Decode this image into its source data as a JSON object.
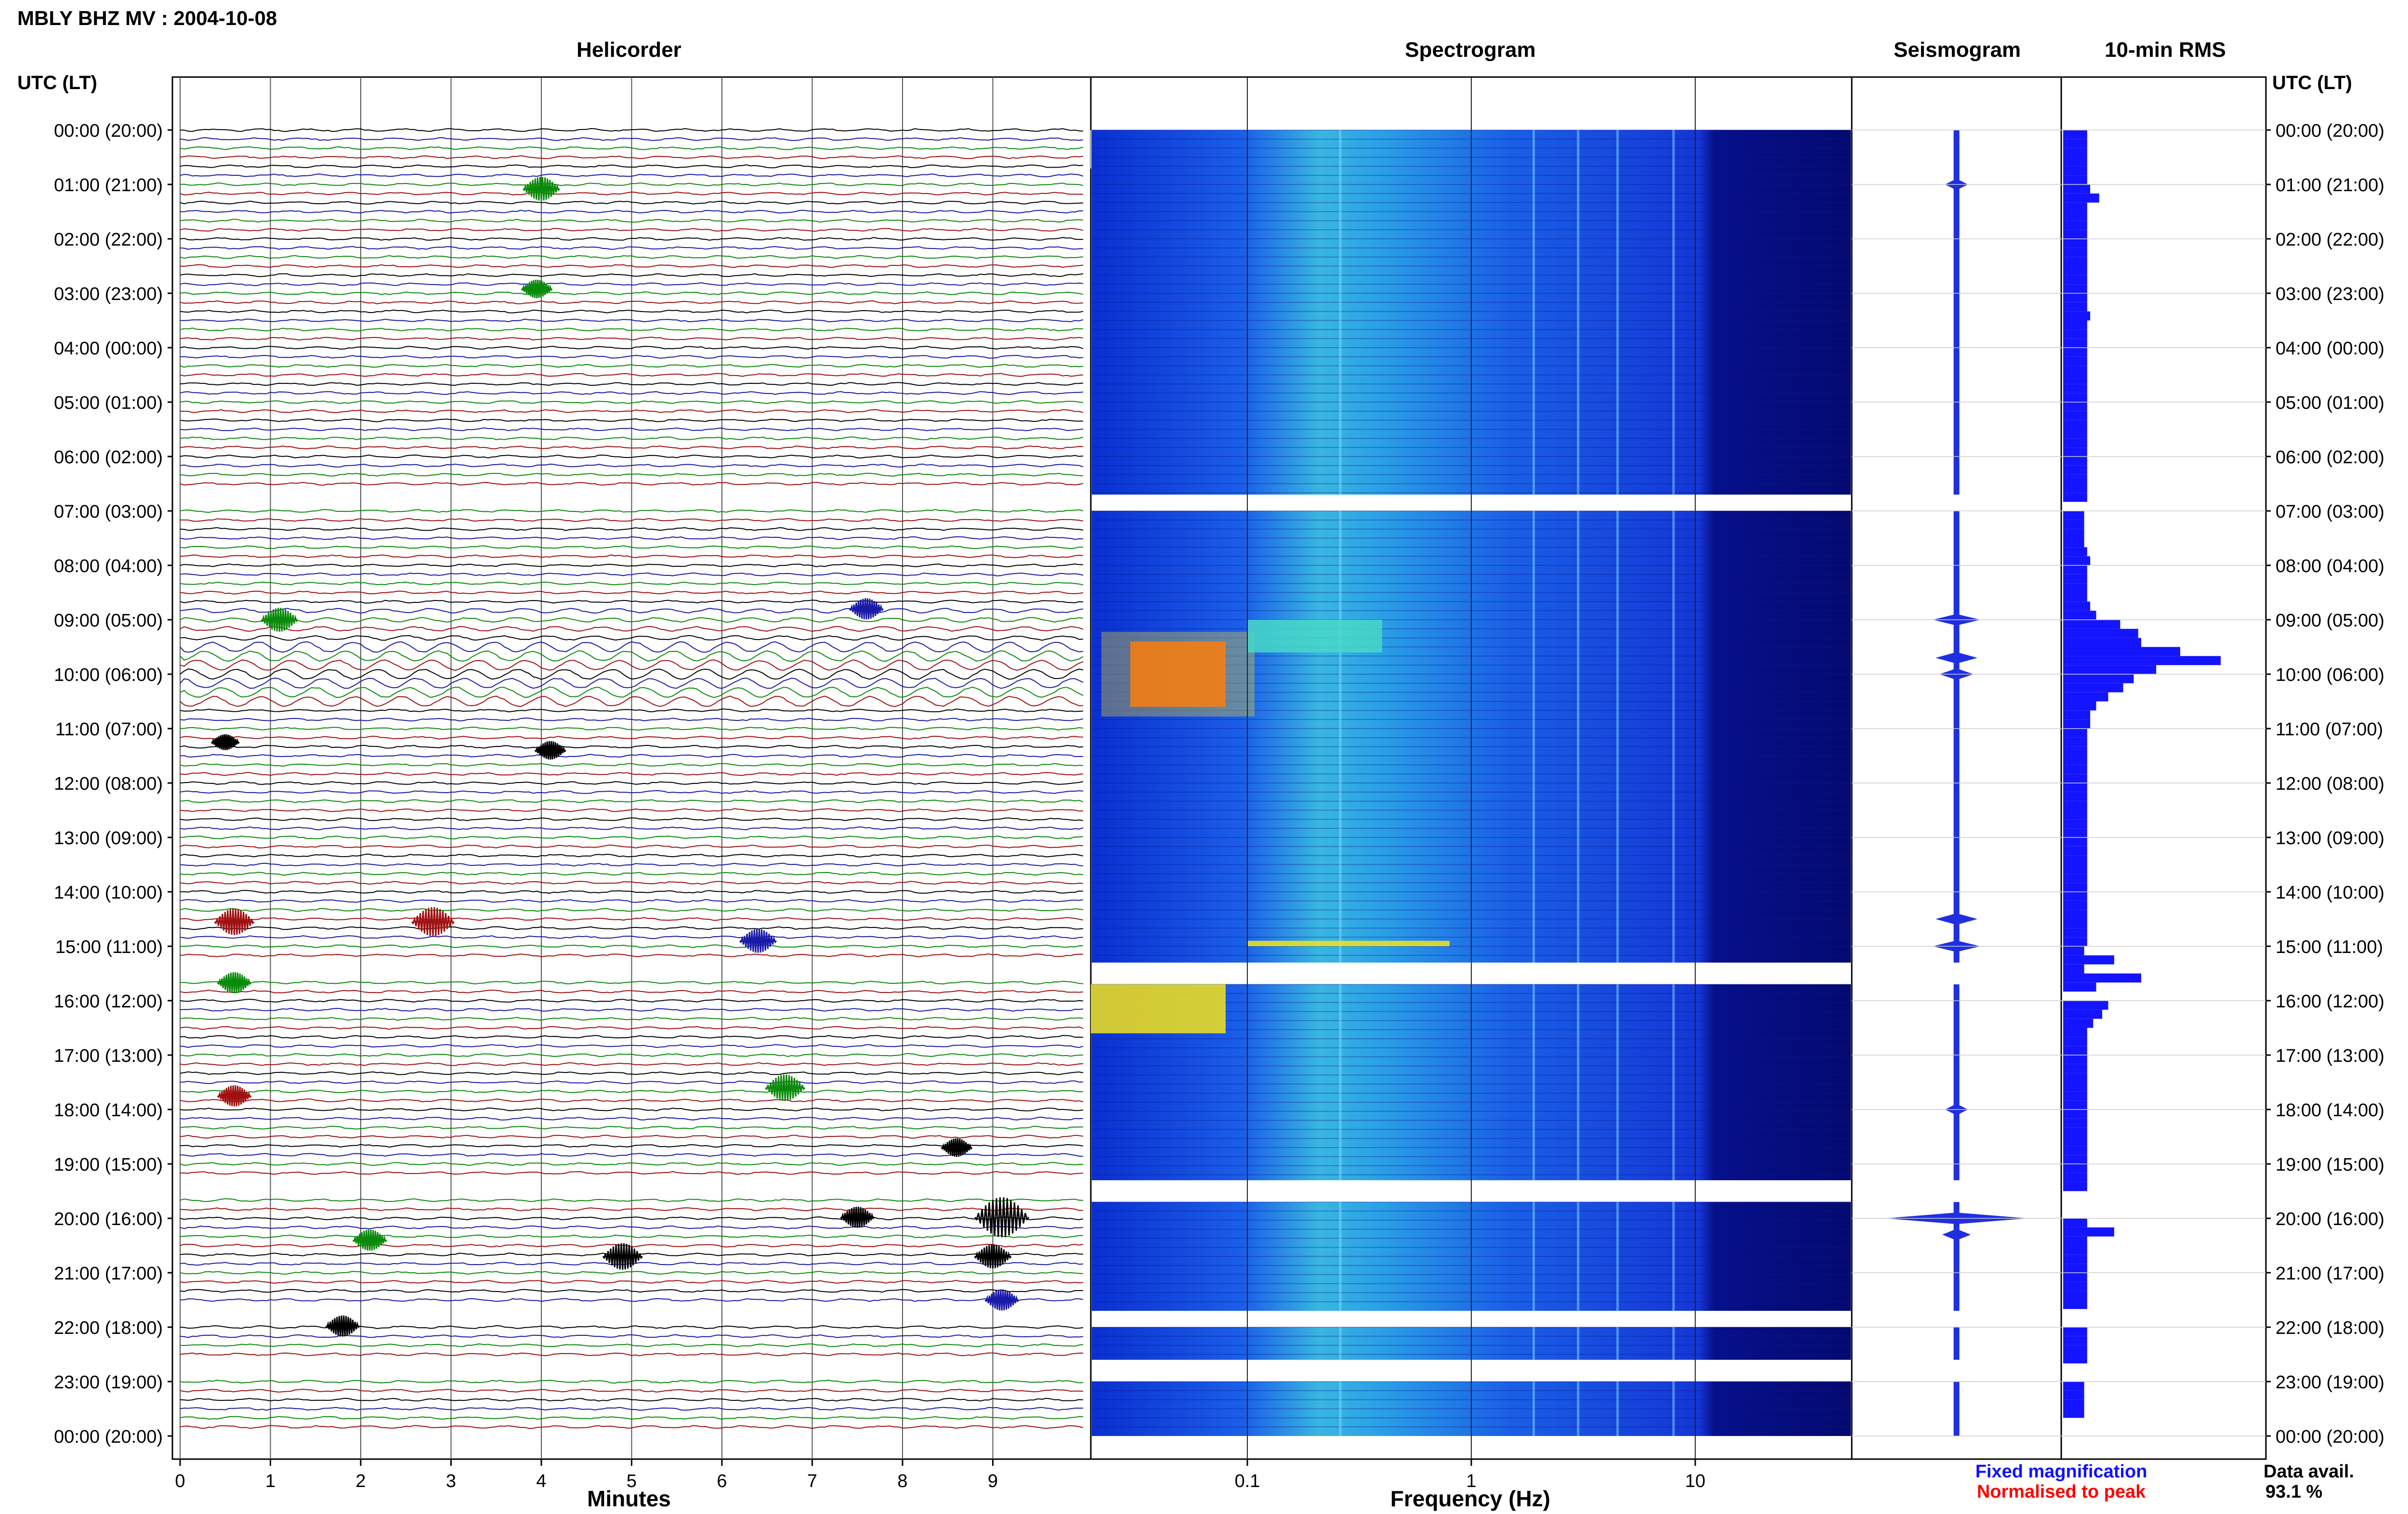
{
  "header": {
    "station_title": "MBLY BHZ MV : 2004-10-08",
    "helicorder_title": "Helicorder",
    "spectrogram_title": "Spectrogram",
    "seismogram_title": "Seismogram",
    "rms_title": "10-min RMS",
    "utc_label_left": "UTC (LT)",
    "utc_label_right": "UTC (LT)"
  },
  "footer": {
    "minutes_label": "Minutes",
    "frequency_label": "Frequency (Hz)",
    "fixed_magnification": "Fixed magnification",
    "normalised_to_peak": "Normalised to peak",
    "data_avail_label": "Data avail.",
    "data_avail_value": "93.1 %"
  },
  "colors": {
    "trace_cycle": [
      "#000000",
      "#1a1aa8",
      "#0a8a0a",
      "#a01010"
    ],
    "seismogram": "#1f2fe0",
    "rms_bar": "#1414ff",
    "fixed_magnification": "#1010ff",
    "normalised_to_peak": "#ff0000",
    "spectrogram_low": "#00008b",
    "spectrogram_high": "#ff4000"
  },
  "chart_data": {
    "type": "heatmap",
    "time_ticks": [
      "00:00 (20:00)",
      "01:00 (21:00)",
      "02:00 (22:00)",
      "03:00 (23:00)",
      "04:00 (00:00)",
      "05:00 (01:00)",
      "06:00 (02:00)",
      "07:00 (03:00)",
      "08:00 (04:00)",
      "09:00 (05:00)",
      "10:00 (06:00)",
      "11:00 (07:00)",
      "12:00 (08:00)",
      "13:00 (09:00)",
      "14:00 (10:00)",
      "15:00 (11:00)",
      "16:00 (12:00)",
      "17:00 (13:00)",
      "18:00 (14:00)",
      "19:00 (15:00)",
      "20:00 (16:00)",
      "21:00 (17:00)",
      "22:00 (18:00)",
      "23:00 (19:00)",
      "00:00 (20:00)"
    ],
    "helicorder": {
      "xlabel": "Minutes",
      "minutes_ticks": [
        "0",
        "1",
        "2",
        "3",
        "4",
        "5",
        "6",
        "7",
        "8",
        "9"
      ],
      "xlim": [
        0,
        10
      ],
      "rows_per_hour": 6,
      "events": [
        {
          "hour": 1.08,
          "minute": 4.0,
          "amp": 0.6
        },
        {
          "hour": 2.92,
          "minute": 3.95,
          "amp": 0.4
        },
        {
          "hour": 8.8,
          "minute": 7.6,
          "amp": 0.5
        },
        {
          "hour": 9.0,
          "minute": 1.1,
          "amp": 0.6
        },
        {
          "hour": 11.25,
          "minute": 0.5,
          "amp": 0.3
        },
        {
          "hour": 11.4,
          "minute": 4.1,
          "amp": 0.4
        },
        {
          "hour": 14.55,
          "minute": 0.6,
          "amp": 0.7
        },
        {
          "hour": 14.55,
          "minute": 2.8,
          "amp": 0.8
        },
        {
          "hour": 14.9,
          "minute": 6.4,
          "amp": 0.6
        },
        {
          "hour": 15.67,
          "minute": 0.6,
          "amp": 0.5
        },
        {
          "hour": 17.6,
          "minute": 6.7,
          "amp": 0.7
        },
        {
          "hour": 17.75,
          "minute": 0.6,
          "amp": 0.5
        },
        {
          "hour": 18.7,
          "minute": 8.6,
          "amp": 0.4
        },
        {
          "hour": 19.98,
          "minute": 7.5,
          "amp": 0.5
        },
        {
          "hour": 19.98,
          "minute": 9.1,
          "amp": 1.2
        },
        {
          "hour": 20.4,
          "minute": 2.1,
          "amp": 0.5
        },
        {
          "hour": 20.7,
          "minute": 4.9,
          "amp": 0.7
        },
        {
          "hour": 20.7,
          "minute": 9.0,
          "amp": 0.6
        },
        {
          "hour": 21.5,
          "minute": 9.1,
          "amp": 0.5
        },
        {
          "hour": 21.98,
          "minute": 1.8,
          "amp": 0.5
        }
      ]
    },
    "spectrogram": {
      "xlabel": "Frequency (Hz)",
      "x_scale": "log",
      "xlim": [
        0.02,
        50
      ],
      "tick_labels": [
        "0.1",
        "1",
        "10"
      ],
      "gaps_utc_hours": [
        [
          6.7,
          7.0
        ],
        [
          15.3,
          15.7
        ],
        [
          19.3,
          19.7
        ],
        [
          21.7,
          22.0
        ],
        [
          22.6,
          23.0
        ]
      ],
      "hot_spots": [
        {
          "hour_start": 9.4,
          "hour_end": 10.6,
          "freq_min": 0.03,
          "freq_max": 0.08,
          "level": 1.0
        },
        {
          "hour_start": 15.7,
          "hour_end": 16.6,
          "freq_min": 0.02,
          "freq_max": 0.08,
          "level": 0.75
        },
        {
          "hour_start": 9.0,
          "hour_end": 9.6,
          "freq_min": 0.1,
          "freq_max": 0.4,
          "level": 0.6
        },
        {
          "hour_start": 14.9,
          "hour_end": 15.0,
          "freq_min": 0.1,
          "freq_max": 0.8,
          "level": 0.7
        }
      ]
    },
    "seismogram": {
      "xlim": [
        -1,
        1
      ],
      "amplitudes_utc_hour": [
        {
          "hour": 1.0,
          "amp": 0.12
        },
        {
          "hour": 9.0,
          "amp": 0.25
        },
        {
          "hour": 9.7,
          "amp": 0.22
        },
        {
          "hour": 10.0,
          "amp": 0.18
        },
        {
          "hour": 14.5,
          "amp": 0.22
        },
        {
          "hour": 15.0,
          "amp": 0.25
        },
        {
          "hour": 18.0,
          "amp": 0.12
        },
        {
          "hour": 20.0,
          "amp": 0.75
        },
        {
          "hour": 20.3,
          "amp": 0.15
        }
      ]
    },
    "rms_10min": {
      "values": [
        0.16,
        0.16,
        0.16,
        0.16,
        0.16,
        0.16,
        0.18,
        0.24,
        0.16,
        0.16,
        0.16,
        0.16,
        0.16,
        0.16,
        0.16,
        0.16,
        0.16,
        0.16,
        0.16,
        0.16,
        0.18,
        0.16,
        0.16,
        0.16,
        0.16,
        0.16,
        0.16,
        0.16,
        0.16,
        0.16,
        0.16,
        0.16,
        0.16,
        0.16,
        0.16,
        0.16,
        0.16,
        0.16,
        0.16,
        0.16,
        0.16,
        null,
        0.14,
        0.14,
        0.14,
        0.14,
        0.16,
        0.18,
        0.16,
        0.16,
        0.16,
        0.16,
        0.18,
        0.22,
        0.38,
        0.5,
        0.52,
        0.78,
        1.05,
        0.62,
        0.47,
        0.4,
        0.3,
        0.22,
        0.18,
        0.18,
        0.16,
        0.16,
        0.16,
        0.16,
        0.16,
        0.16,
        0.16,
        0.16,
        0.16,
        0.16,
        0.16,
        0.16,
        0.16,
        0.16,
        0.16,
        0.16,
        0.16,
        0.16,
        0.16,
        0.16,
        0.16,
        0.16,
        0.16,
        0.16,
        0.14,
        0.34,
        0.14,
        0.52,
        0.22,
        null,
        0.3,
        0.26,
        0.2,
        0.16,
        0.16,
        0.16,
        0.16,
        0.16,
        0.16,
        0.16,
        0.16,
        0.16,
        0.16,
        0.16,
        0.16,
        0.16,
        0.16,
        0.16,
        0.16,
        0.16,
        0.16,
        null,
        null,
        null,
        0.16,
        0.34,
        0.16,
        0.16,
        0.16,
        0.16,
        0.16,
        0.16,
        0.16,
        0.16,
        null,
        null,
        0.16,
        0.16,
        0.16,
        0.16,
        null,
        null,
        0.14,
        0.14,
        0.14,
        0.14,
        null,
        null
      ]
    }
  }
}
